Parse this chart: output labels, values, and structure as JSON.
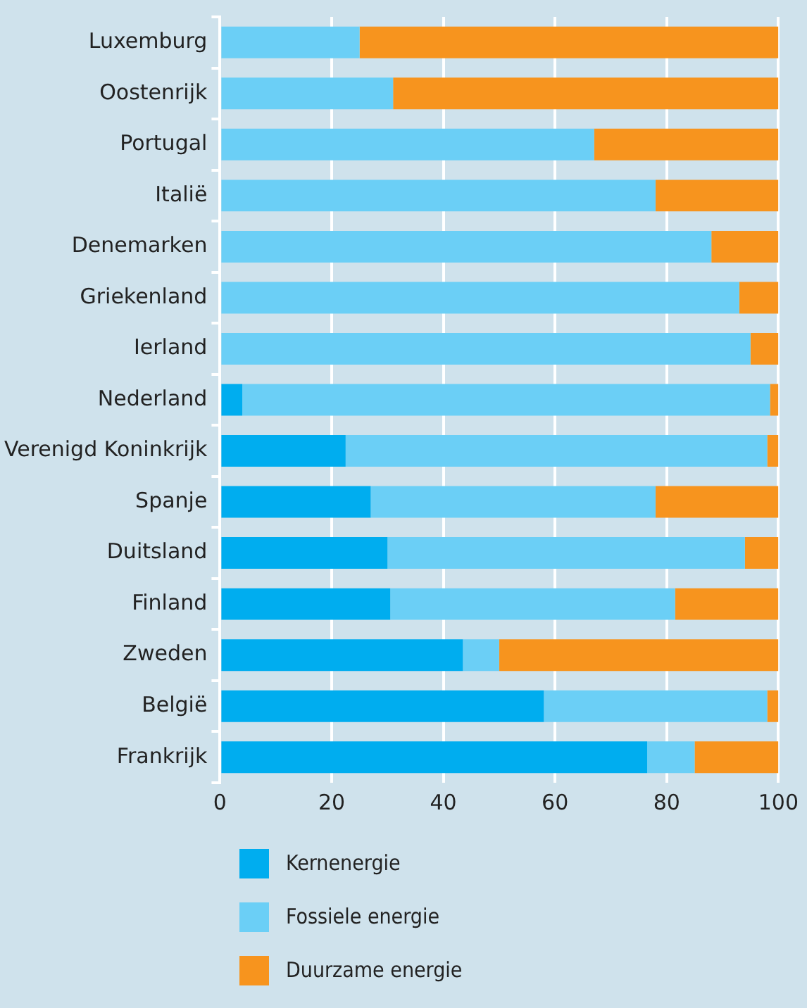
{
  "chart_data": {
    "type": "bar",
    "orientation": "horizontal",
    "stacked": true,
    "categories": [
      "Luxemburg",
      "Oostenrijk",
      "Portugal",
      "Italië",
      "Denemarken",
      "Griekenland",
      "Ierland",
      "Nederland",
      "Verenigd Koninkrijk",
      "Spanje",
      "Duitsland",
      "Finland",
      "Zweden",
      "België",
      "Frankrijk"
    ],
    "series": [
      {
        "name": "Kernenergie",
        "color": "#00adef",
        "values": [
          0,
          0,
          0,
          0,
          0,
          0,
          0,
          4,
          22.5,
          27,
          30,
          30.5,
          43.5,
          58,
          76.5
        ]
      },
      {
        "name": "Fossiele energie",
        "color": "#6bcff6",
        "values": [
          25,
          31,
          67,
          78,
          88,
          93,
          95,
          94.5,
          75.5,
          51,
          64,
          51,
          6.5,
          40,
          8.5
        ]
      },
      {
        "name": "Duurzame energie",
        "color": "#f7941e",
        "values": [
          75,
          69,
          33,
          22,
          12,
          7,
          5,
          1.5,
          2,
          22,
          6,
          18.5,
          50,
          2,
          15
        ]
      }
    ],
    "xlim": [
      0,
      100
    ],
    "xticks": [
      0,
      20,
      40,
      60,
      80,
      100
    ],
    "grid": "x",
    "legend": "bottom"
  }
}
